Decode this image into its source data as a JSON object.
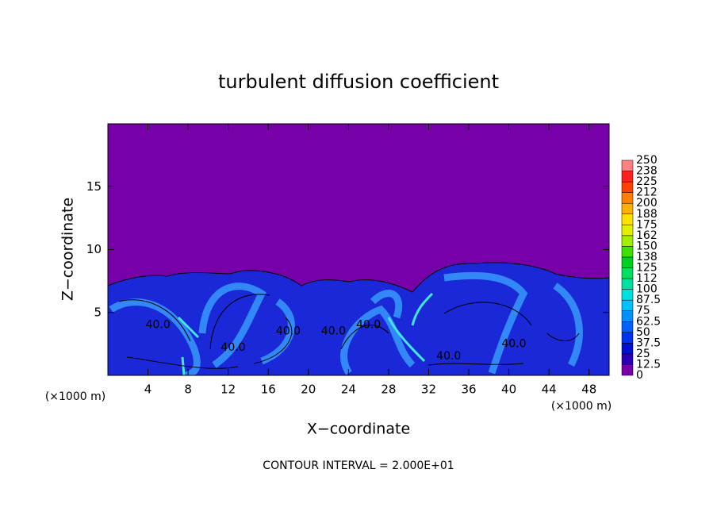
{
  "chart_data": {
    "type": "heatmap",
    "title": "turbulent diffusion coefficient",
    "x_label": "X−coordinate",
    "y_label": "Z−coordinate",
    "x_unit": "(×1000 m)",
    "x_unit_right": "(×1000 m)",
    "footer": "CONTOUR INTERVAL = 2.000E+01",
    "xlim": [
      0,
      50
    ],
    "xticks": [
      4,
      8,
      12,
      16,
      20,
      24,
      28,
      32,
      36,
      40,
      44,
      48
    ],
    "ylim": [
      0,
      20
    ],
    "yticks": [
      5,
      10,
      15
    ],
    "colorbar": {
      "ticks": [
        0,
        12.5,
        25,
        37.5,
        50,
        62.5,
        75,
        87.5,
        100,
        112,
        125,
        138,
        150,
        162,
        175,
        188,
        200,
        212,
        225,
        238,
        250
      ],
      "colors": [
        "#7800a8",
        "#2a00b4",
        "#0010d0",
        "#0030f0",
        "#0060ff",
        "#0090ff",
        "#00c0ff",
        "#00e0e0",
        "#00e0a0",
        "#00e060",
        "#00d020",
        "#40e000",
        "#a0f000",
        "#e0f000",
        "#ffe000",
        "#ffb000",
        "#ff8000",
        "#ff4000",
        "#ff2020",
        "#ff8080"
      ]
    },
    "annotations": [
      {
        "text": "40.0",
        "x": 5,
        "y": 4
      },
      {
        "text": "40.0",
        "x": 12.5,
        "y": 2.2
      },
      {
        "text": "40.0",
        "x": 18,
        "y": 3.5
      },
      {
        "text": "40.0",
        "x": 22.5,
        "y": 3.5
      },
      {
        "text": "40.0",
        "x": 26,
        "y": 4
      },
      {
        "text": "40.0",
        "x": 34,
        "y": 1.5
      },
      {
        "text": "40.0",
        "x": 40.5,
        "y": 2.5
      }
    ]
  }
}
